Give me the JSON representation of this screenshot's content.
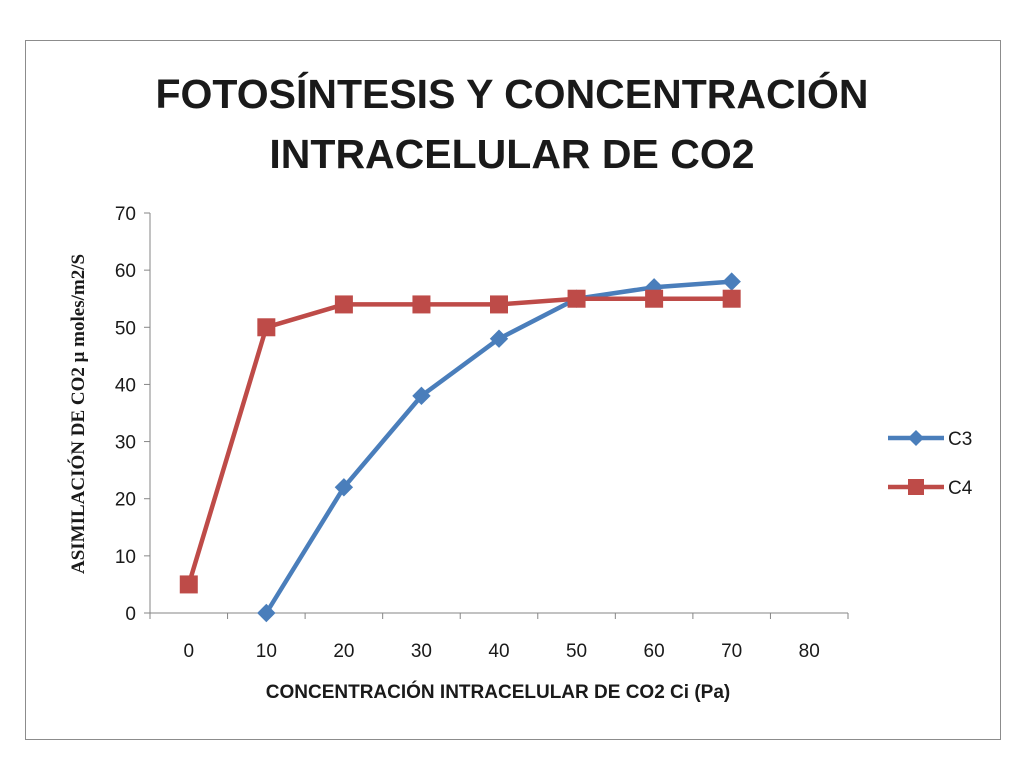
{
  "chart_data": {
    "type": "line",
    "title": [
      "FOTOSÍNTESIS Y CONCENTRACIÓN",
      "INTRACELULAR DE CO2"
    ],
    "xlabel": "CONCENTRACIÓN INTRACELULAR DE CO2 Ci (Pa)",
    "ylabel": "ASIMILACIÓN DE CO2 μ moles/m2/S",
    "xlim": [
      0,
      80
    ],
    "ylim": [
      0,
      70
    ],
    "xticks": [
      0,
      10,
      20,
      30,
      40,
      50,
      60,
      70,
      80
    ],
    "yticks": [
      0,
      10,
      20,
      30,
      40,
      50,
      60,
      70
    ],
    "grid": false,
    "legend": "right",
    "series": [
      {
        "name": "C3",
        "color": "#4a7ebb",
        "marker": "diamond",
        "x": [
          10,
          20,
          30,
          40,
          50,
          60,
          70
        ],
        "values": [
          0,
          22,
          38,
          48,
          55,
          57,
          58
        ]
      },
      {
        "name": "C4",
        "color": "#be4b48",
        "marker": "square",
        "x": [
          0,
          10,
          20,
          30,
          40,
          50,
          60,
          70
        ],
        "values": [
          5,
          50,
          54,
          54,
          54,
          55,
          55,
          55
        ]
      }
    ]
  }
}
